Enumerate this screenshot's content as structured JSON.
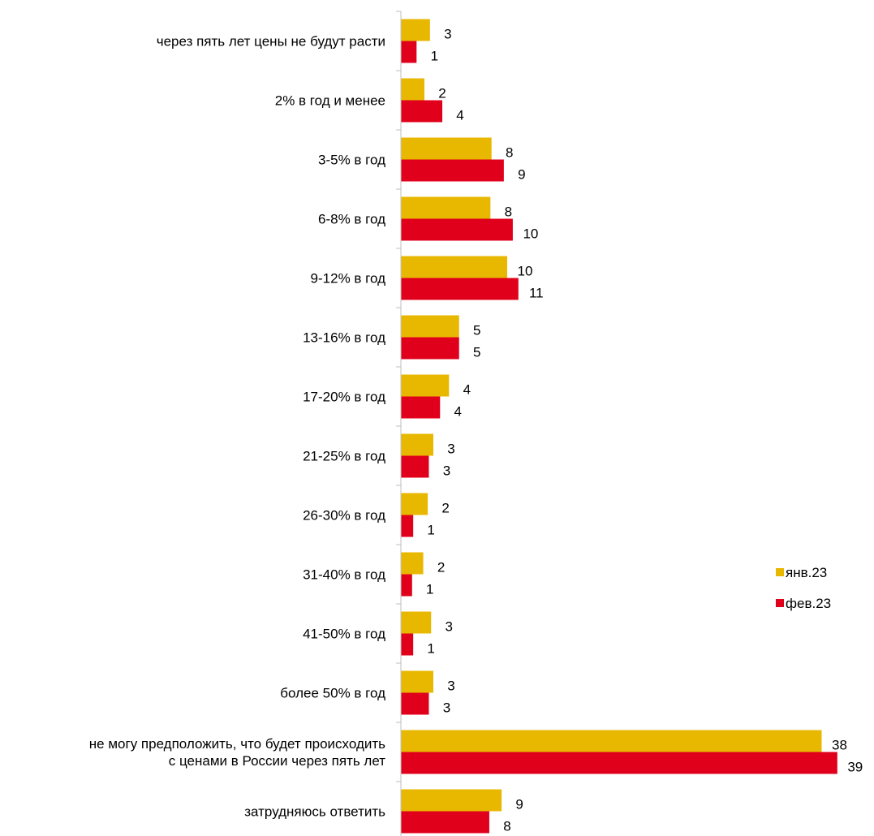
{
  "chart_data": {
    "type": "bar",
    "orientation": "horizontal",
    "title": "",
    "xlabel": "",
    "ylabel": "",
    "categories": [
      "через пять лет цены не будут расти",
      "2% в год и менее",
      "3-5% в год",
      "6-8% в год",
      "9-12% в год",
      "13-16% в год",
      "17-20% в год",
      "21-25% в год",
      "26-30% в год",
      "31-40% в год",
      "41-50% в год",
      "более 50% в год",
      "не могу предположить, что будет происходить с ценами в России через пять лет",
      "затрудняюсь ответить"
    ],
    "series": [
      {
        "name": "янв.23",
        "color": "#E8B800",
        "values": [
          3,
          2,
          8,
          8,
          10,
          5,
          4,
          3,
          2,
          2,
          3,
          3,
          38,
          9
        ],
        "bar_lengths": [
          2.6,
          2.1,
          8.1,
          8.0,
          9.5,
          5.2,
          4.3,
          2.9,
          2.4,
          2.0,
          2.7,
          2.9,
          37.6,
          9.0
        ]
      },
      {
        "name": "фев.23",
        "color": "#E0001B",
        "values": [
          1,
          4,
          9,
          10,
          11,
          5,
          4,
          3,
          1,
          1,
          1,
          3,
          39,
          8
        ],
        "bar_lengths": [
          1.4,
          3.7,
          9.2,
          10.0,
          10.5,
          5.2,
          3.5,
          2.5,
          1.1,
          1.0,
          1.1,
          2.5,
          39.0,
          7.9
        ]
      }
    ],
    "xlim": [
      0,
      42
    ],
    "grid": false,
    "legend": "right"
  }
}
